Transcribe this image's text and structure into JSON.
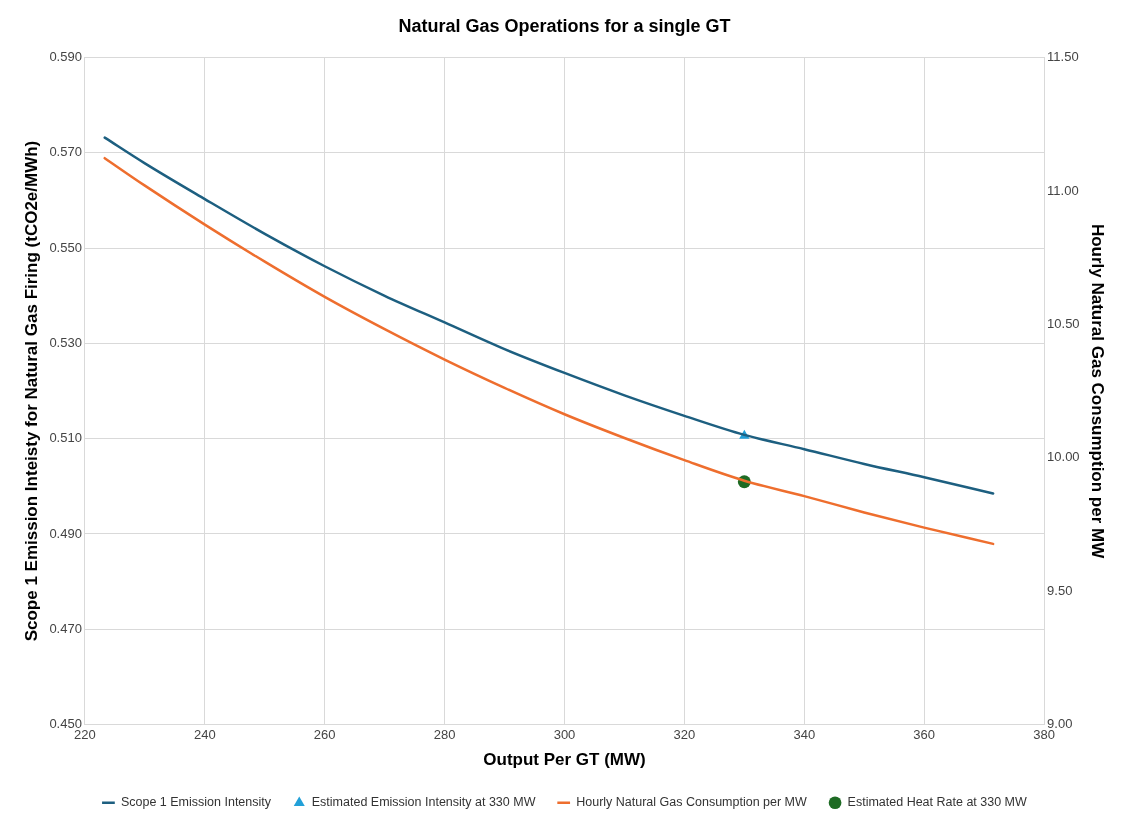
{
  "chart_data": {
    "type": "line",
    "title": "Natural Gas Operations for a single GT",
    "xlabel": "Output Per GT (MW)",
    "ylabel": "Scope 1 Emission Inteisty for Natural Gas Firing (tCO2e/MWh)",
    "y2label": "Hourly Natural Gas Consumption per MW",
    "xlim": [
      220,
      380
    ],
    "xticks": [
      220,
      240,
      260,
      280,
      300,
      320,
      340,
      360,
      380
    ],
    "ylim": [
      0.45,
      0.59
    ],
    "yticks": [
      {
        "value": 0.45,
        "label": "0.450"
      },
      {
        "value": 0.47,
        "label": "0.470"
      },
      {
        "value": 0.49,
        "label": "0.490"
      },
      {
        "value": 0.51,
        "label": "0.510"
      },
      {
        "value": 0.53,
        "label": "0.530"
      },
      {
        "value": 0.55,
        "label": "0.550"
      },
      {
        "value": 0.57,
        "label": "0.570"
      },
      {
        "value": 0.59,
        "label": "0.590"
      }
    ],
    "y2lim": [
      9,
      11.5
    ],
    "y2ticks": [
      {
        "value": 9,
        "label": "9.00"
      },
      {
        "value": 9.5,
        "label": "9.50"
      },
      {
        "value": 10,
        "label": "10.00"
      },
      {
        "value": 10.5,
        "label": "10.50"
      },
      {
        "value": 11,
        "label": "11.00"
      },
      {
        "value": 11.5,
        "label": "11.50"
      }
    ],
    "grid": true,
    "legend": "bottom",
    "series": [
      {
        "name": "Scope 1 Emission Intensity",
        "marker": "none",
        "color": "#1d5f80",
        "x": [
          223.3,
          230,
          240,
          250,
          260,
          270,
          280,
          290,
          300,
          310,
          320,
          330,
          340,
          350,
          360,
          371.5
        ],
        "values": [
          0.5732,
          0.5678,
          0.5603,
          0.553,
          0.5462,
          0.54,
          0.5344,
          0.5288,
          0.5238,
          0.5191,
          0.5148,
          0.5108,
          0.5078,
          0.5047,
          0.5019,
          0.4985
        ]
      },
      {
        "name": "Estimated Emission Intensity at 330 MW",
        "type": "scatter",
        "marker": "triangle",
        "color": "#22a0d8",
        "x": [
          330
        ],
        "values": [
          0.5106
        ]
      },
      {
        "name": "Hourly Natural Gas Consumption per MW",
        "marker": "none",
        "axis": "y2",
        "color": "#ee6e2e",
        "x": [
          223.3,
          230,
          240,
          250,
          260,
          270,
          280,
          290,
          300,
          310,
          320,
          330,
          340,
          350,
          360,
          371.5
        ],
        "values": [
          11.123,
          11.02,
          10.874,
          10.735,
          10.603,
          10.482,
          10.368,
          10.262,
          10.163,
          10.074,
          9.991,
          9.914,
          9.856,
          9.795,
          9.738,
          9.677
        ]
      },
      {
        "name": "Estimated Heat Rate at 330 MW",
        "type": "scatter",
        "marker": "circle",
        "axis": "y2",
        "color": "#1e6b24",
        "x": [
          330
        ],
        "values": [
          9.91
        ]
      }
    ]
  }
}
